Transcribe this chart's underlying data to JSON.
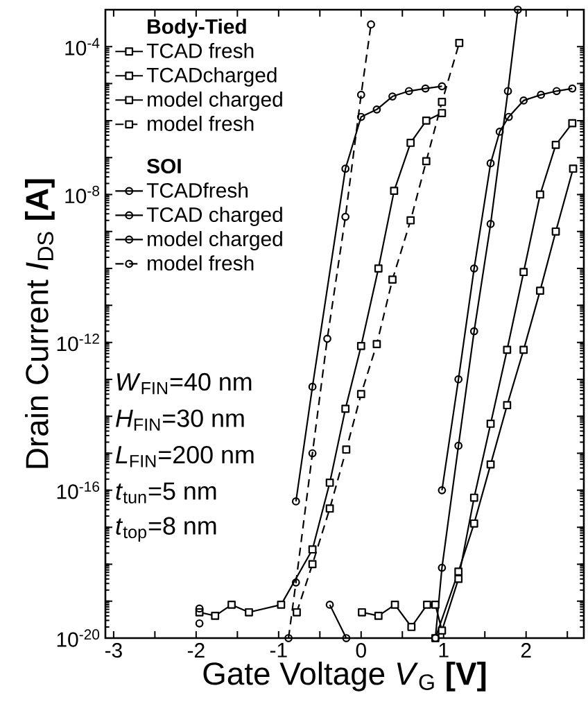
{
  "chart_data": {
    "type": "line",
    "xlabel": "Gate Voltage *V*$_{G}$ **[V]**",
    "ylabel": "Drain Current *I*$_{DS}$ **[A]**",
    "legend_title": "Body-Tied",
    "log": "y",
    "legend": "top left",
    "xlim": [
      -3.1,
      2.7
    ],
    "xticks": [
      -3,
      {
        "value": -2.5,
        "label": null
      },
      -2,
      {
        "value": -1.5,
        "label": null
      },
      -1,
      {
        "value": -0.5,
        "label": null
      },
      0,
      {
        "value": 0.5,
        "label": null
      },
      1,
      {
        "value": 1.5,
        "label": null
      },
      2,
      {
        "value": 2.5,
        "label": null
      }
    ],
    "ylim": [
      1e-20,
      0.001
    ],
    "yticks": [
      {
        "value": 1e-20,
        "label": "10$^{-20}$"
      },
      {
        "value": 1e-19,
        "label": null
      },
      {
        "value": 1e-18,
        "label": null
      },
      {
        "value": 1e-17,
        "label": null
      },
      {
        "value": 1e-16,
        "label": "10$^{-16}$"
      },
      {
        "value": 1e-15,
        "label": null
      },
      {
        "value": 1e-14,
        "label": null
      },
      {
        "value": 1e-13,
        "label": null
      },
      {
        "value": 1e-12,
        "label": "10$^{-12}$"
      },
      {
        "value": 1e-11,
        "label": null
      },
      {
        "value": 1e-10,
        "label": null
      },
      {
        "value": 1e-09,
        "label": null
      },
      {
        "value": 1e-08,
        "label": "10$^{-8}$"
      },
      {
        "value": 1e-07,
        "label": null
      },
      {
        "value": 1e-06,
        "label": null
      },
      {
        "value": 1e-05,
        "label": null
      },
      {
        "value": 0.0001,
        "label": "10$^{-4}$"
      }
    ],
    "annotations": [
      "SOI",
      "*W*$_{FIN}$=40 nm",
      "*H*$_{FIN}$=30 nm",
      "*L*$_{FIN}$=200 nm",
      "*t*$_{tun}$=5 nm",
      "*t*$_{top}$=8 nm"
    ],
    "series": [
      {
        "name": "TCAD fresh",
        "color": "#000000",
        "marker": "square",
        "line_style": "solid",
        "x": [
          -1.96,
          -1.77,
          -1.57,
          -1.36,
          -0.97,
          -0.59,
          -0.38,
          -0.19,
          0.0,
          0.21,
          0.4,
          0.6,
          0.79,
          0.98
        ],
        "values": [
          5e-20,
          4e-20,
          8e-20,
          5e-20,
          8e-20,
          2.5e-18,
          1.6e-16,
          1.6e-14,
          8e-13,
          1e-10,
          1.26e-08,
          2.5e-07,
          1e-06,
          1.6e-06
        ]
      },
      {
        "name": "TCADcharged",
        "color": "#000000",
        "marker": "square",
        "line_style": "solid",
        "x": [
          0.01,
          0.21,
          0.41,
          0.61,
          0.8,
          0.9,
          0.98,
          1.18,
          1.37,
          1.57,
          1.77,
          1.97,
          2.17,
          2.36,
          2.56
        ],
        "values": [
          5e-20,
          4e-20,
          8e-20,
          2e-20,
          8e-20,
          8e-20,
          1.6e-20,
          4e-19,
          6.3e-17,
          6.3e-15,
          6.3e-13,
          8e-11,
          1e-08,
          2.2e-07,
          8.5e-07
        ]
      },
      {
        "name": "model charged",
        "color": "#000000",
        "marker": "square",
        "line_style": "solid",
        "x": [
          0.9,
          1.18,
          1.37,
          1.57,
          1.77,
          1.97,
          2.17,
          2.36,
          2.57
        ],
        "values": [
          1e-20,
          6.3e-19,
          1.26e-17,
          5e-16,
          2e-14,
          6.3e-13,
          2.5e-11,
          1e-09,
          5e-08
        ]
      },
      {
        "name": "model fresh",
        "color": "#000000",
        "marker": "square",
        "line_style": "dashed",
        "x": [
          -0.78,
          -0.59,
          -0.38,
          -0.18,
          0.0,
          0.19,
          0.38,
          0.6,
          0.79,
          0.98,
          1.19
        ],
        "values": [
          5e-20,
          1e-18,
          3.2e-17,
          1.26e-15,
          4e-14,
          9e-13,
          5e-11,
          2e-09,
          8e-08,
          3.2e-06,
          0.000126
        ]
      },
      {
        "name": "TCADfresh",
        "color": "#000000",
        "marker": "circle",
        "line_style": "solid",
        "x": [
          -1.96,
          -1.4,
          -0.79,
          -0.59,
          -0.19,
          0.0,
          0.19,
          0.38,
          0.58,
          0.78,
          0.98
        ],
        "values": [
          2.5e-20,
          null,
          5e-17,
          6.3e-14,
          5e-08,
          1.26e-06,
          2e-06,
          4.5e-06,
          6.3e-06,
          7.4e-06,
          8.5e-06
        ]
      },
      {
        "name": "TCAD charged",
        "color": "#000000",
        "marker": "circle",
        "line_style": "solid",
        "x": [
          -1.96,
          -1.2,
          -0.38,
          -0.18,
          0.4,
          0.98,
          1.18,
          1.37,
          1.57,
          1.68,
          1.79,
          1.97,
          2.18,
          2.37,
          2.56
        ],
        "values": [
          6.3e-20,
          null,
          8e-20,
          1e-20,
          null,
          1e-16,
          1e-13,
          1e-10,
          7e-08,
          5e-07,
          1.26e-06,
          3.5e-06,
          5e-06,
          6.3e-06,
          7.4e-06
        ]
      },
      {
        "name": "model charged",
        "color": "#000000",
        "marker": "circle",
        "line_style": "solid",
        "x": [
          0.9,
          0.98,
          1.18,
          1.37,
          1.57,
          1.78,
          1.9
        ],
        "values": [
          1e-20,
          8e-19,
          1.6e-15,
          2e-12,
          1.6e-09,
          6.3e-06,
          0.001
        ]
      },
      {
        "name": "model fresh",
        "color": "#000000",
        "marker": "circle",
        "line_style": "dashed",
        "x": [
          -0.88,
          -0.79,
          -0.59,
          -0.41,
          -0.19,
          0.0,
          0.12
        ],
        "values": [
          1e-20,
          3.2e-19,
          1e-15,
          1.26e-12,
          2.5e-09,
          5e-06,
          0.0004
        ]
      }
    ]
  }
}
